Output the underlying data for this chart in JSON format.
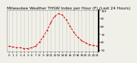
{
  "title": "Milwaukee Weather THSW Index per Hour (F) (Last 24 Hours)",
  "hours": [
    0,
    1,
    2,
    3,
    4,
    5,
    6,
    7,
    8,
    9,
    10,
    11,
    12,
    13,
    14,
    15,
    16,
    17,
    18,
    19,
    20,
    21,
    22,
    23
  ],
  "values": [
    55,
    54,
    53,
    53,
    52,
    52,
    53,
    55,
    60,
    67,
    75,
    85,
    93,
    96,
    94,
    88,
    80,
    72,
    66,
    62,
    59,
    57,
    56,
    55
  ],
  "line_color": "#dd0000",
  "marker": "o",
  "marker_size": 1.2,
  "line_style": "--",
  "line_width": 0.7,
  "ylim": [
    48,
    100
  ],
  "yticks": [
    50,
    60,
    70,
    80,
    90,
    100
  ],
  "ytick_labels": [
    "50",
    "60",
    "70",
    "80",
    "90",
    "100"
  ],
  "xlim": [
    -0.5,
    23.5
  ],
  "xticks": [
    0,
    1,
    2,
    3,
    4,
    5,
    6,
    7,
    8,
    9,
    10,
    11,
    12,
    13,
    14,
    15,
    16,
    17,
    18,
    19,
    20,
    21,
    22,
    23
  ],
  "bg_color": "#f0f0e8",
  "grid_color": "#aaaaaa",
  "title_fontsize": 4.2,
  "tick_fontsize": 3.2
}
